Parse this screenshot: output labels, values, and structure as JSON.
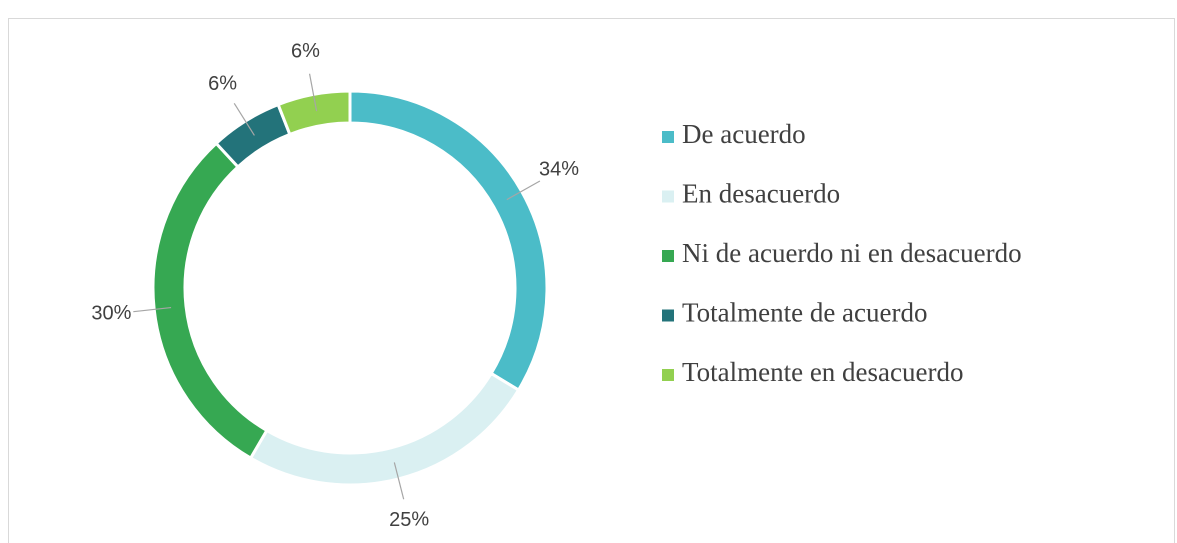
{
  "chart_data": {
    "type": "donut",
    "categories": [
      "De acuerdo",
      "En desacuerdo",
      "Ni de acuerdo ni en desacuerdo",
      "Totalmente de acuerdo",
      "Totalmente en desacuerdo"
    ],
    "values": [
      34,
      25,
      30,
      6,
      6
    ],
    "colors": [
      "#4bbcc8",
      "#daf0f2",
      "#36a852",
      "#23737a",
      "#92d050"
    ],
    "legend": "right"
  }
}
